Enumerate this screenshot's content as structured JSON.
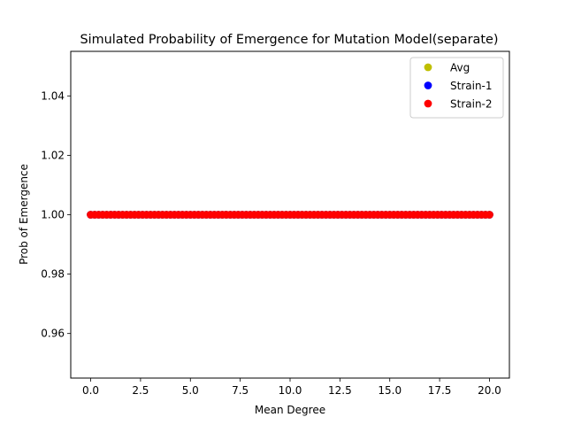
{
  "chart_data": {
    "type": "scatter",
    "title": "Simulated Probability of Emergence for Mutation Model(separate)",
    "xlabel": "Mean Degree",
    "ylabel": "Prob of Emergence",
    "xlim": [
      -1.0,
      21.0
    ],
    "ylim": [
      0.945,
      1.055
    ],
    "xticks": [
      0.0,
      2.5,
      5.0,
      7.5,
      10.0,
      12.5,
      15.0,
      17.5,
      20.0
    ],
    "xtick_labels": [
      "0.0",
      "2.5",
      "5.0",
      "7.5",
      "10.0",
      "12.5",
      "15.0",
      "17.5",
      "20.0"
    ],
    "yticks": [
      0.96,
      0.98,
      1.0,
      1.02,
      1.04
    ],
    "ytick_labels": [
      "0.96",
      "0.98",
      "1.00",
      "1.02",
      "1.04"
    ],
    "grid": false,
    "legend_position": "top-right",
    "x_start": 0.0,
    "x_end": 20.0,
    "x_step": 0.2,
    "series": [
      {
        "name": "Avg",
        "color": "#bfbf00",
        "marker": "circle",
        "y_constant": 1.0
      },
      {
        "name": "Strain-1",
        "color": "#0000ff",
        "marker": "circle",
        "y_constant": 1.0
      },
      {
        "name": "Strain-2",
        "color": "#ff0000",
        "marker": "circle",
        "y_constant": 1.0
      }
    ]
  }
}
